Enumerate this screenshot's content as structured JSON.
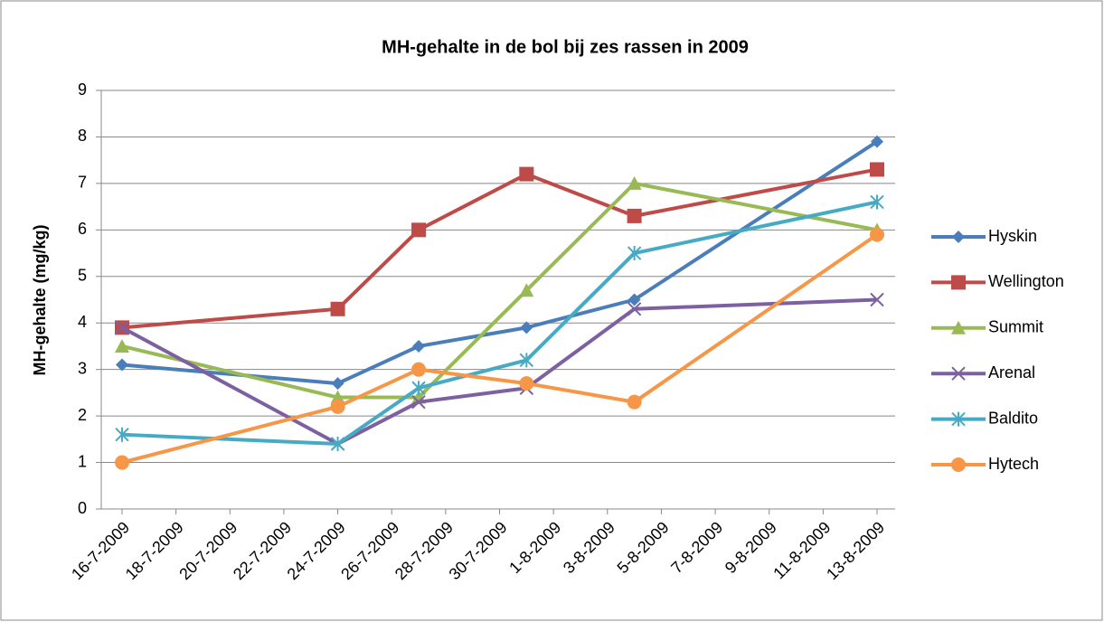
{
  "chart_data": {
    "type": "line",
    "title": "MH-gehalte in de bol bij zes rassen in 2009",
    "y_label": "MH-gehalte (mg/kg)",
    "x": [
      "2009-07-16",
      "2009-07-24",
      "2009-07-27",
      "2009-07-31",
      "2009-08-04",
      "2009-08-13"
    ],
    "xlim": [
      "2009-07-16",
      "2009-08-13"
    ],
    "xticks": [
      {
        "value": "2009-07-16",
        "label": "16-7-2009"
      },
      {
        "value": "2009-07-18",
        "label": "18-7-2009"
      },
      {
        "value": "2009-07-20",
        "label": "20-7-2009"
      },
      {
        "value": "2009-07-22",
        "label": "22-7-2009"
      },
      {
        "value": "2009-07-24",
        "label": "24-7-2009"
      },
      {
        "value": "2009-07-26",
        "label": "26-7-2009"
      },
      {
        "value": "2009-07-28",
        "label": "28-7-2009"
      },
      {
        "value": "2009-07-30",
        "label": "30-7-2009"
      },
      {
        "value": "2009-08-01",
        "label": "1-8-2009"
      },
      {
        "value": "2009-08-03",
        "label": "3-8-2009"
      },
      {
        "value": "2009-08-05",
        "label": "5-8-2009"
      },
      {
        "value": "2009-08-07",
        "label": "7-8-2009"
      },
      {
        "value": "2009-08-09",
        "label": "9-8-2009"
      },
      {
        "value": "2009-08-11",
        "label": "11-8-2009"
      },
      {
        "value": "2009-08-13",
        "label": "13-8-2009"
      }
    ],
    "ylim": [
      0,
      9
    ],
    "yticks": [
      0,
      1,
      2,
      3,
      4,
      5,
      6,
      7,
      8,
      9
    ],
    "grid": true,
    "legend": "right",
    "series": [
      {
        "name": "Hyskin",
        "color": "#4a7ebb",
        "marker": "diamond",
        "values": [
          3.1,
          2.7,
          3.5,
          3.9,
          4.5,
          7.9
        ]
      },
      {
        "name": "Wellington",
        "color": "#be4b48",
        "marker": "square",
        "values": [
          3.9,
          4.3,
          6.0,
          7.2,
          6.3,
          7.3
        ]
      },
      {
        "name": "Summit",
        "color": "#98b954",
        "marker": "triangle",
        "values": [
          3.5,
          2.4,
          2.4,
          4.7,
          7.0,
          6.0
        ]
      },
      {
        "name": "Arenal",
        "color": "#7d60a0",
        "marker": "x",
        "values": [
          3.9,
          1.4,
          2.3,
          2.6,
          4.3,
          4.5
        ]
      },
      {
        "name": "Baldito",
        "color": "#46aac5",
        "marker": "star",
        "values": [
          1.6,
          1.4,
          2.6,
          3.2,
          5.5,
          6.6
        ]
      },
      {
        "name": "Hytech",
        "color": "#f79646",
        "marker": "circle",
        "values": [
          1.0,
          2.2,
          3.0,
          2.7,
          2.3,
          5.9
        ]
      }
    ]
  }
}
